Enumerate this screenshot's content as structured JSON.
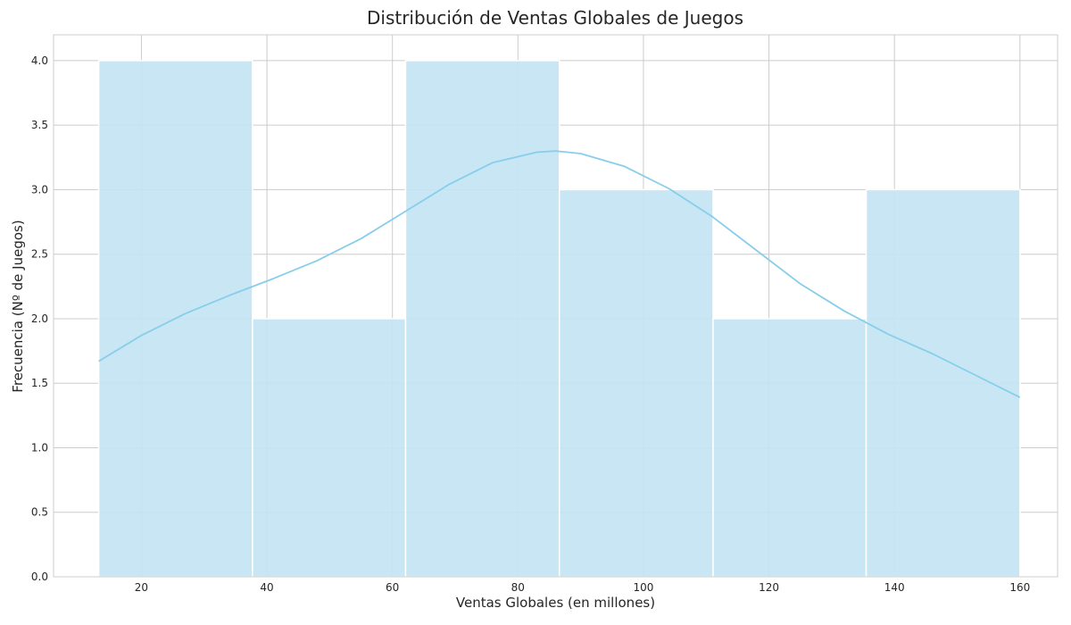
{
  "chart_data": {
    "type": "bar",
    "title": "Distribución de Ventas Globales de Juegos",
    "xlabel": "Ventas Globales (en millones)",
    "ylabel": "Frecuencia (Nº de Juegos)",
    "xlim": [
      6,
      166
    ],
    "ylim": [
      0,
      4.2
    ],
    "xticks": [
      20,
      40,
      60,
      80,
      100,
      120,
      140,
      160
    ],
    "yticks": [
      "0.0",
      "0.5",
      "1.0",
      "1.5",
      "2.0",
      "2.5",
      "3.0",
      "3.5",
      "4.0"
    ],
    "grid": true,
    "bins": [
      {
        "x0": 13.2,
        "x1": 37.7,
        "count": 4
      },
      {
        "x0": 37.7,
        "x1": 62.1,
        "count": 2
      },
      {
        "x0": 62.1,
        "x1": 86.6,
        "count": 4
      },
      {
        "x0": 86.6,
        "x1": 111.1,
        "count": 3
      },
      {
        "x0": 111.1,
        "x1": 135.5,
        "count": 2
      },
      {
        "x0": 135.5,
        "x1": 160.0,
        "count": 3
      }
    ],
    "kde": {
      "x": [
        13.2,
        20,
        27,
        34,
        41,
        48,
        55,
        62,
        69,
        76,
        83,
        86,
        90,
        97,
        104,
        111,
        118,
        125,
        132,
        139,
        146,
        153,
        160
      ],
      "y": [
        1.67,
        1.87,
        2.04,
        2.18,
        2.31,
        2.45,
        2.62,
        2.83,
        3.04,
        3.21,
        3.29,
        3.3,
        3.28,
        3.18,
        3.01,
        2.79,
        2.53,
        2.27,
        2.06,
        1.88,
        1.73,
        1.56,
        1.39
      ]
    },
    "colors": {
      "bar_fill": "#c3e4f3",
      "bar_edge": "#ffffff",
      "kde_line": "#87ceeb",
      "grid": "#cccccc"
    }
  }
}
